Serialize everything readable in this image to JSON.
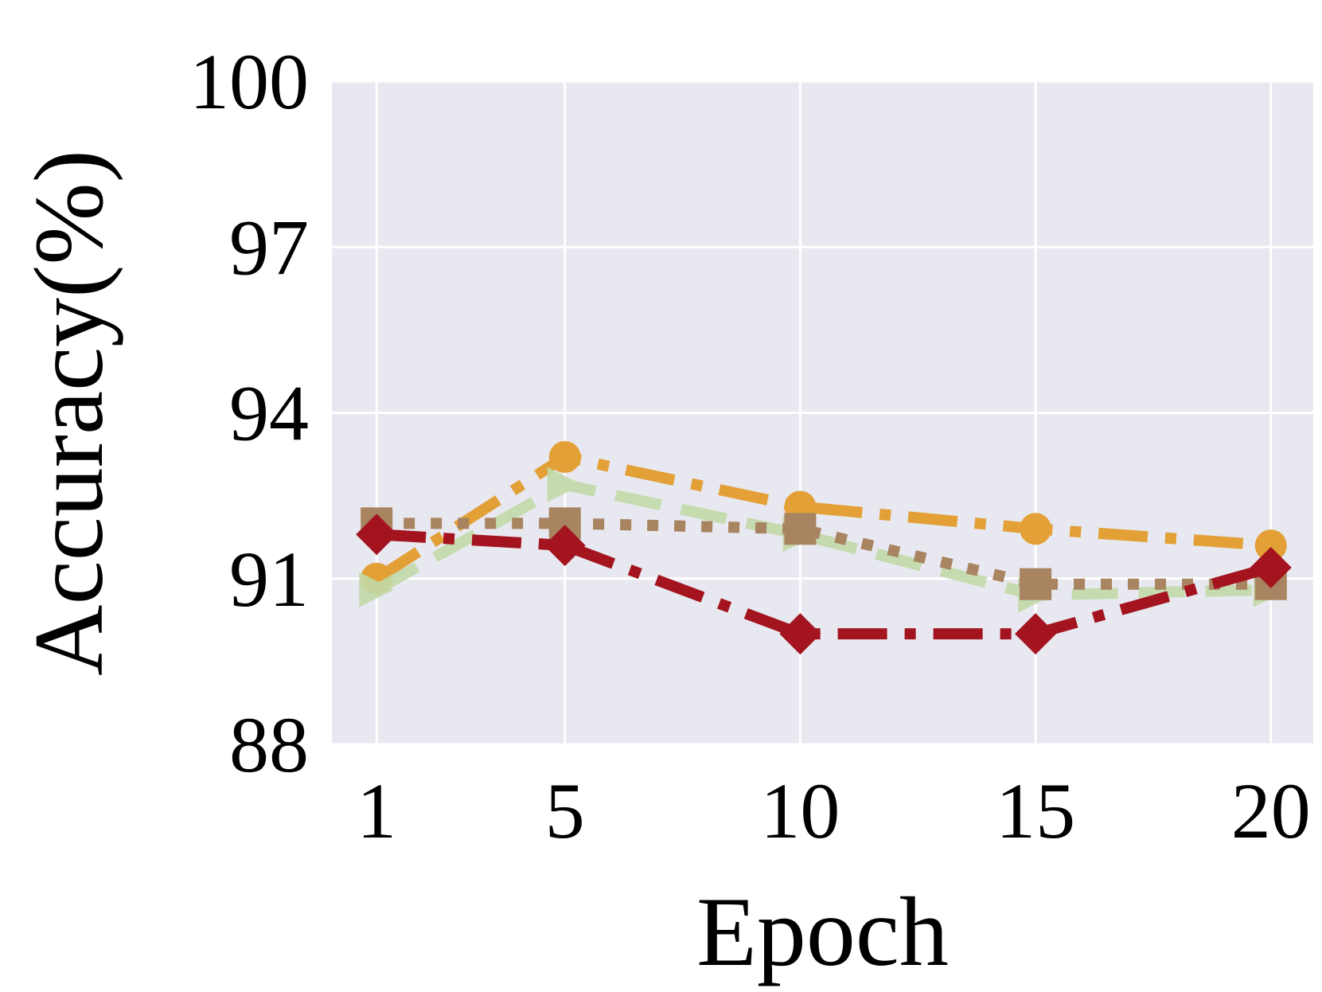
{
  "chart_data": {
    "type": "line",
    "title": "",
    "xlabel": "Epoch",
    "ylabel": "Accuracy(%)",
    "x": [
      1,
      5,
      10,
      15,
      20
    ],
    "x_ticks": [
      "1",
      "5",
      "10",
      "15",
      "20"
    ],
    "y_ticks": [
      "88",
      "91",
      "94",
      "97",
      "100"
    ],
    "xlim": [
      0.05,
      20.9
    ],
    "ylim": [
      88,
      100
    ],
    "grid": true,
    "legend": "none",
    "background": "#E8E8F0",
    "grid_color": "#FFFFFF",
    "series": [
      {
        "values": [
          91.0,
          93.2,
          92.3,
          91.9,
          91.6
        ],
        "color": "#E3A037",
        "dash": "dashdot",
        "marker": "circle",
        "opacity": 1
      },
      {
        "values": [
          90.8,
          92.7,
          91.8,
          90.7,
          90.8
        ],
        "color": "#C2D9A8",
        "dash": "dashed",
        "marker": "triangle-right",
        "opacity": 0.9
      },
      {
        "values": [
          92.0,
          92.0,
          91.9,
          90.9,
          90.9
        ],
        "color": "#A88461",
        "dash": "dotted",
        "marker": "square",
        "opacity": 1
      },
      {
        "values": [
          91.8,
          91.6,
          90.0,
          90.0,
          91.2
        ],
        "color": "#A3141F",
        "dash": "dashdot",
        "marker": "diamond",
        "opacity": 1
      }
    ]
  }
}
